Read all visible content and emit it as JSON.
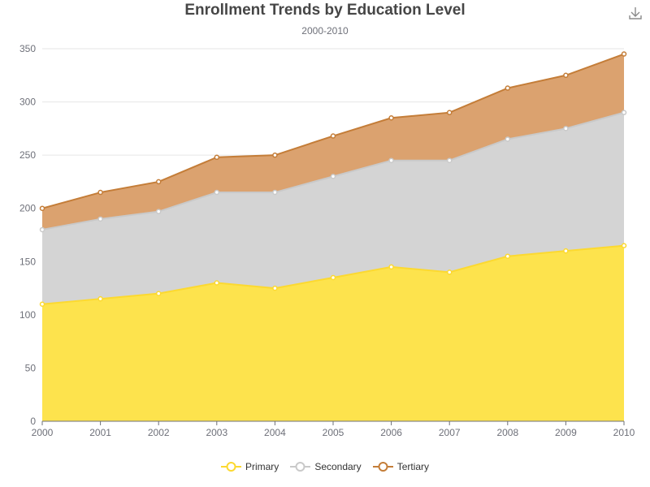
{
  "chart_data": {
    "type": "area",
    "stacked": true,
    "title": "Enrollment Trends by Education Level",
    "subtitle": "2000-2010",
    "x": [
      "2000",
      "2001",
      "2002",
      "2003",
      "2004",
      "2005",
      "2006",
      "2007",
      "2008",
      "2009",
      "2010"
    ],
    "ylim": [
      0,
      350
    ],
    "yticks": [
      0,
      50,
      100,
      150,
      200,
      250,
      300,
      350
    ],
    "grid": true,
    "legend_position": "bottom-center",
    "series": [
      {
        "name": "Primary",
        "color": "#fcd930",
        "fill": "#fde34d",
        "values": [
          110,
          115,
          120,
          130,
          125,
          135,
          145,
          140,
          155,
          160,
          165
        ]
      },
      {
        "name": "Secondary",
        "color": "#c9c9c9",
        "fill": "#d4d4d4",
        "values": [
          70,
          75,
          77,
          85,
          90,
          95,
          100,
          105,
          110,
          115,
          125
        ]
      },
      {
        "name": "Tertiary",
        "color": "#c47d38",
        "fill": "#dba26f",
        "values": [
          20,
          25,
          28,
          33,
          35,
          38,
          40,
          45,
          48,
          50,
          55
        ]
      }
    ]
  },
  "toolbox": {
    "download_icon": "download-icon"
  }
}
